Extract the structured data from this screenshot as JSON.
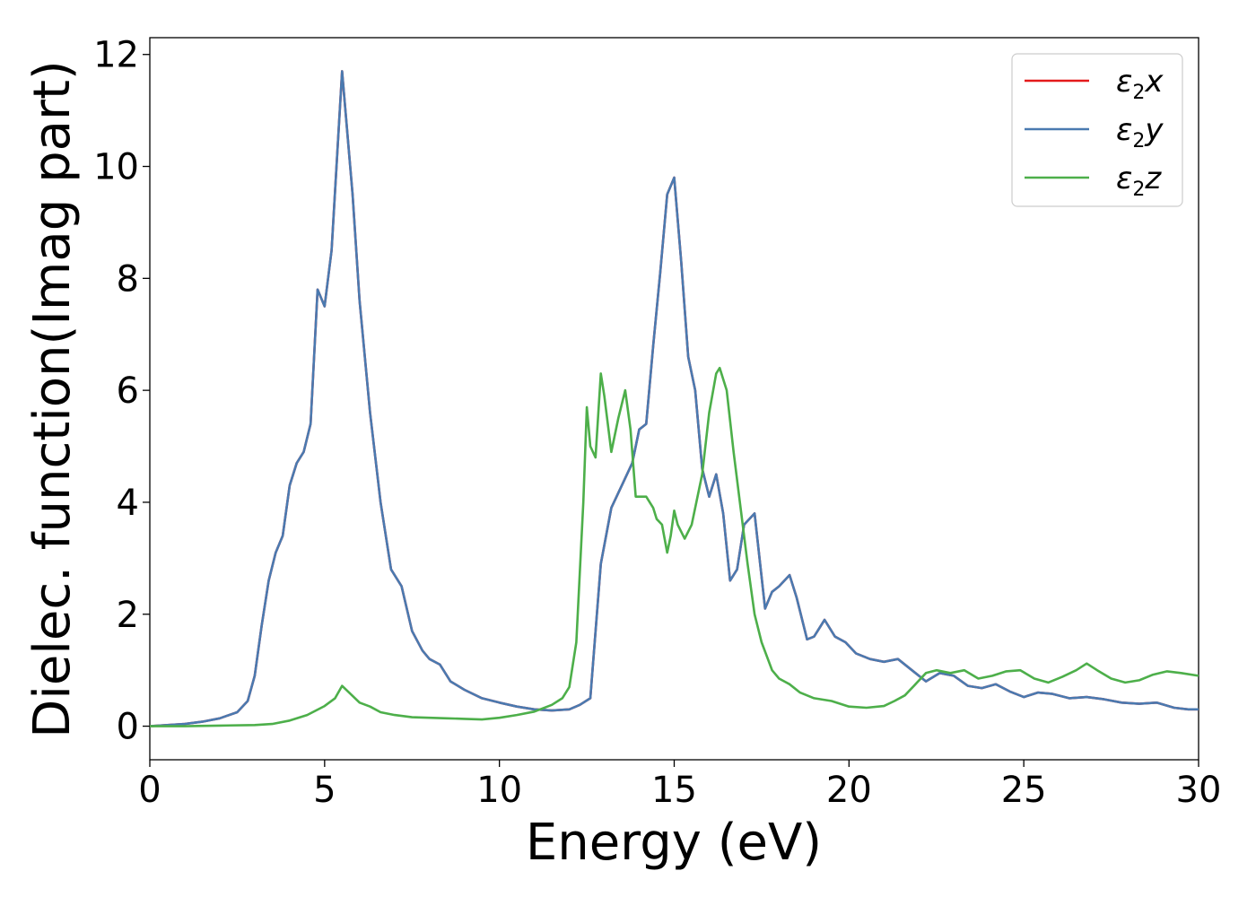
{
  "chart_data": {
    "type": "line",
    "xlabel": "Energy (eV)",
    "ylabel": "Dielec. function(Imag part)",
    "xlim": [
      0,
      30
    ],
    "ylim": [
      -0.6,
      12.3
    ],
    "xticks": [
      0,
      5,
      10,
      15,
      20,
      25,
      30
    ],
    "yticks": [
      0,
      2,
      4,
      6,
      8,
      10,
      12
    ],
    "grid": false,
    "legend_position": "top-right",
    "series": [
      {
        "name": "ε2x",
        "legend": {
          "base": "ε",
          "sub": "2",
          "tail": "x"
        },
        "color": "#e41a1c",
        "x": [
          0,
          0.5,
          1,
          1.5,
          2,
          2.5,
          2.8,
          3.0,
          3.2,
          3.4,
          3.6,
          3.8,
          4.0,
          4.2,
          4.4,
          4.6,
          4.8,
          5.0,
          5.2,
          5.5,
          5.8,
          6.0,
          6.3,
          6.6,
          6.9,
          7.2,
          7.5,
          7.8,
          8.0,
          8.3,
          8.6,
          9.0,
          9.5,
          10.0,
          10.5,
          11.0,
          11.5,
          12.0,
          12.3,
          12.6,
          12.9,
          13.2,
          13.5,
          13.8,
          14.0,
          14.2,
          14.4,
          14.6,
          14.8,
          15.0,
          15.2,
          15.4,
          15.6,
          15.8,
          16.0,
          16.2,
          16.4,
          16.6,
          16.8,
          17.0,
          17.3,
          17.6,
          17.8,
          18.0,
          18.3,
          18.5,
          18.8,
          19.0,
          19.3,
          19.6,
          19.9,
          20.2,
          20.6,
          21.0,
          21.4,
          21.8,
          22.2,
          22.6,
          23.0,
          23.4,
          23.8,
          24.2,
          24.6,
          25.0,
          25.4,
          25.8,
          26.3,
          26.8,
          27.3,
          27.8,
          28.3,
          28.8,
          29.3,
          29.7,
          30.0
        ],
        "y": [
          0.0,
          0.02,
          0.04,
          0.08,
          0.14,
          0.25,
          0.45,
          0.9,
          1.8,
          2.6,
          3.1,
          3.4,
          4.3,
          4.7,
          4.9,
          5.4,
          7.8,
          7.5,
          8.5,
          11.7,
          9.5,
          7.6,
          5.6,
          4.0,
          2.8,
          2.5,
          1.7,
          1.35,
          1.2,
          1.1,
          0.8,
          0.65,
          0.5,
          0.42,
          0.35,
          0.3,
          0.28,
          0.3,
          0.38,
          0.5,
          2.9,
          3.9,
          4.3,
          4.7,
          5.3,
          5.4,
          6.8,
          8.1,
          9.5,
          9.8,
          8.3,
          6.6,
          6.0,
          4.6,
          4.1,
          4.5,
          3.8,
          2.6,
          2.8,
          3.6,
          3.8,
          2.1,
          2.4,
          2.5,
          2.7,
          2.3,
          1.55,
          1.6,
          1.9,
          1.6,
          1.5,
          1.3,
          1.2,
          1.15,
          1.2,
          1.0,
          0.8,
          0.95,
          0.9,
          0.72,
          0.68,
          0.75,
          0.62,
          0.52,
          0.6,
          0.58,
          0.5,
          0.52,
          0.48,
          0.42,
          0.4,
          0.42,
          0.33,
          0.3,
          0.3
        ]
      },
      {
        "name": "ε2y",
        "legend": {
          "base": "ε",
          "sub": "2",
          "tail": "y"
        },
        "color": "#4a7ab0",
        "x": [
          0,
          0.5,
          1,
          1.5,
          2,
          2.5,
          2.8,
          3.0,
          3.2,
          3.4,
          3.6,
          3.8,
          4.0,
          4.2,
          4.4,
          4.6,
          4.8,
          5.0,
          5.2,
          5.5,
          5.8,
          6.0,
          6.3,
          6.6,
          6.9,
          7.2,
          7.5,
          7.8,
          8.0,
          8.3,
          8.6,
          9.0,
          9.5,
          10.0,
          10.5,
          11.0,
          11.5,
          12.0,
          12.3,
          12.6,
          12.9,
          13.2,
          13.5,
          13.8,
          14.0,
          14.2,
          14.4,
          14.6,
          14.8,
          15.0,
          15.2,
          15.4,
          15.6,
          15.8,
          16.0,
          16.2,
          16.4,
          16.6,
          16.8,
          17.0,
          17.3,
          17.6,
          17.8,
          18.0,
          18.3,
          18.5,
          18.8,
          19.0,
          19.3,
          19.6,
          19.9,
          20.2,
          20.6,
          21.0,
          21.4,
          21.8,
          22.2,
          22.6,
          23.0,
          23.4,
          23.8,
          24.2,
          24.6,
          25.0,
          25.4,
          25.8,
          26.3,
          26.8,
          27.3,
          27.8,
          28.3,
          28.8,
          29.3,
          29.7,
          30.0
        ],
        "y": [
          0.0,
          0.02,
          0.04,
          0.08,
          0.14,
          0.25,
          0.45,
          0.9,
          1.8,
          2.6,
          3.1,
          3.4,
          4.3,
          4.7,
          4.9,
          5.4,
          7.8,
          7.5,
          8.5,
          11.7,
          9.5,
          7.6,
          5.6,
          4.0,
          2.8,
          2.5,
          1.7,
          1.35,
          1.2,
          1.1,
          0.8,
          0.65,
          0.5,
          0.42,
          0.35,
          0.3,
          0.28,
          0.3,
          0.38,
          0.5,
          2.9,
          3.9,
          4.3,
          4.7,
          5.3,
          5.4,
          6.8,
          8.1,
          9.5,
          9.8,
          8.3,
          6.6,
          6.0,
          4.6,
          4.1,
          4.5,
          3.8,
          2.6,
          2.8,
          3.6,
          3.8,
          2.1,
          2.4,
          2.5,
          2.7,
          2.3,
          1.55,
          1.6,
          1.9,
          1.6,
          1.5,
          1.3,
          1.2,
          1.15,
          1.2,
          1.0,
          0.8,
          0.95,
          0.9,
          0.72,
          0.68,
          0.75,
          0.62,
          0.52,
          0.6,
          0.58,
          0.5,
          0.52,
          0.48,
          0.42,
          0.4,
          0.42,
          0.33,
          0.3,
          0.3
        ]
      },
      {
        "name": "ε2z",
        "legend": {
          "base": "ε",
          "sub": "2",
          "tail": "z"
        },
        "color": "#4daf4a",
        "x": [
          0,
          1,
          2,
          3,
          3.5,
          4.0,
          4.5,
          5.0,
          5.3,
          5.5,
          5.7,
          6.0,
          6.3,
          6.6,
          7.0,
          7.5,
          8.0,
          8.5,
          9.0,
          9.5,
          10.0,
          10.5,
          11.0,
          11.5,
          11.8,
          12.0,
          12.2,
          12.4,
          12.5,
          12.6,
          12.75,
          12.9,
          13.0,
          13.2,
          13.4,
          13.6,
          13.75,
          13.9,
          14.1,
          14.2,
          14.4,
          14.5,
          14.65,
          14.8,
          14.9,
          15.0,
          15.1,
          15.3,
          15.5,
          15.8,
          16.0,
          16.2,
          16.3,
          16.5,
          16.7,
          16.9,
          17.1,
          17.3,
          17.5,
          17.8,
          18.0,
          18.3,
          18.6,
          19.0,
          19.5,
          20.0,
          20.5,
          21.0,
          21.3,
          21.6,
          21.9,
          22.2,
          22.5,
          22.9,
          23.3,
          23.7,
          24.1,
          24.5,
          24.9,
          25.3,
          25.7,
          26.1,
          26.5,
          26.8,
          27.1,
          27.5,
          27.9,
          28.3,
          28.7,
          29.1,
          29.5,
          30.0
        ],
        "y": [
          0.0,
          0.0,
          0.01,
          0.02,
          0.04,
          0.1,
          0.2,
          0.36,
          0.5,
          0.72,
          0.6,
          0.42,
          0.35,
          0.25,
          0.2,
          0.16,
          0.15,
          0.14,
          0.13,
          0.12,
          0.15,
          0.2,
          0.26,
          0.38,
          0.5,
          0.7,
          1.5,
          4.0,
          5.7,
          5.0,
          4.8,
          6.3,
          5.9,
          4.9,
          5.5,
          6.0,
          5.3,
          4.1,
          4.1,
          4.1,
          3.9,
          3.7,
          3.6,
          3.1,
          3.4,
          3.85,
          3.6,
          3.35,
          3.6,
          4.5,
          5.6,
          6.3,
          6.4,
          6.0,
          4.9,
          3.9,
          2.9,
          2.0,
          1.5,
          1.0,
          0.85,
          0.75,
          0.6,
          0.5,
          0.45,
          0.35,
          0.33,
          0.36,
          0.45,
          0.55,
          0.75,
          0.95,
          1.0,
          0.95,
          1.0,
          0.85,
          0.9,
          0.98,
          1.0,
          0.85,
          0.78,
          0.88,
          1.0,
          1.12,
          1.0,
          0.85,
          0.78,
          0.82,
          0.92,
          0.98,
          0.95,
          0.9
        ]
      }
    ]
  }
}
